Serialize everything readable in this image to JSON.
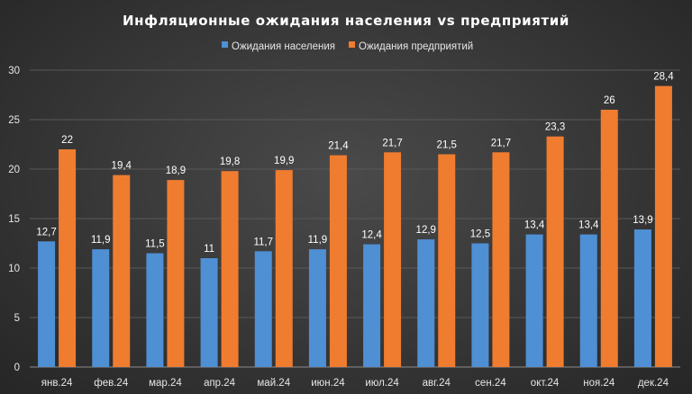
{
  "chart_data": {
    "type": "bar",
    "title": "Инфляционные ожидания населения vs предприятий",
    "categories": [
      "янв.24",
      "фев.24",
      "мар.24",
      "апр.24",
      "май.24",
      "июн.24",
      "июл.24",
      "авг.24",
      "сен.24",
      "окт.24",
      "ноя.24",
      "дек.24"
    ],
    "series": [
      {
        "name": "Ожидания населения",
        "color": "#4f8fd4",
        "values": [
          12.7,
          11.9,
          11.5,
          11,
          11.7,
          11.9,
          12.4,
          12.9,
          12.5,
          13.4,
          13.4,
          13.9
        ],
        "labels": [
          "12,7",
          "11,9",
          "11,5",
          "11",
          "11,7",
          "11,9",
          "12,4",
          "12,9",
          "12,5",
          "13,4",
          "13,4",
          "13,9"
        ]
      },
      {
        "name": "Ожидания предприятий",
        "color": "#f07c30",
        "values": [
          22,
          19.4,
          18.9,
          19.8,
          19.9,
          21.4,
          21.7,
          21.5,
          21.7,
          23.3,
          26,
          28.4
        ],
        "labels": [
          "22",
          "19,4",
          "18,9",
          "19,8",
          "19,9",
          "21,4",
          "21,7",
          "21,5",
          "21,7",
          "23,3",
          "26",
          "28,4"
        ]
      }
    ],
    "xlabel": "",
    "ylabel": "",
    "ylim": [
      0,
      30
    ],
    "yticks": [
      0,
      5,
      10,
      15,
      20,
      25,
      30
    ],
    "grid": true,
    "legend": "top-center"
  }
}
